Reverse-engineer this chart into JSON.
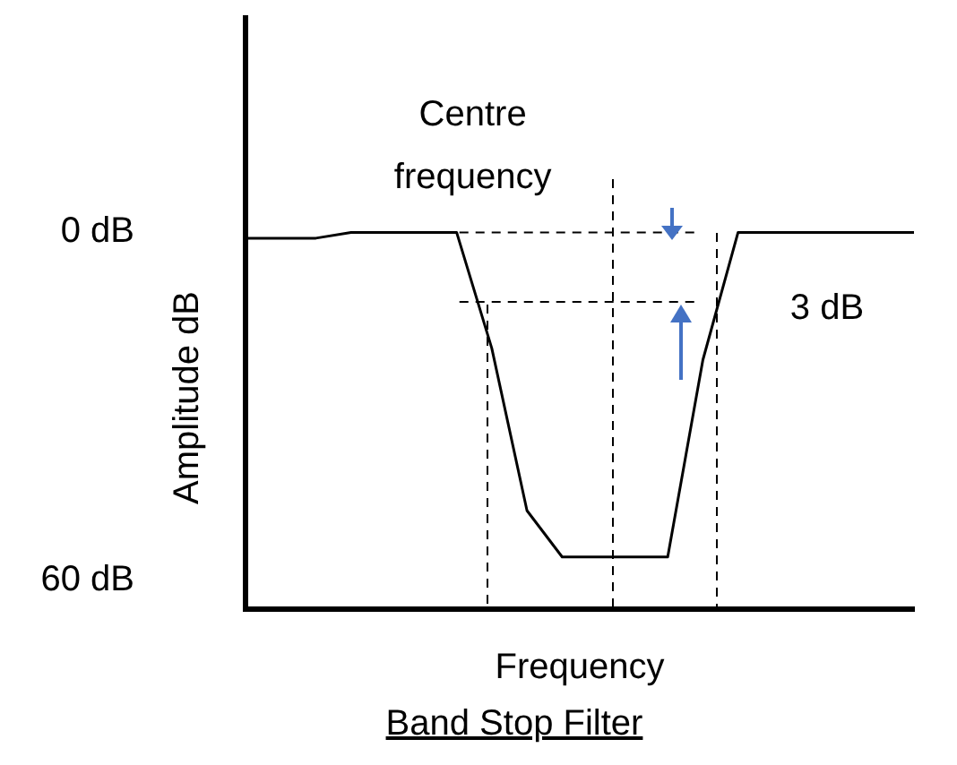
{
  "chart_data": {
    "type": "line",
    "title": "Band Stop Filter",
    "xlabel": "Frequency",
    "ylabel": "Amplitude dB",
    "categories": [
      null,
      null,
      null,
      null,
      null,
      null,
      null,
      null,
      null,
      null,
      null,
      null,
      null,
      null,
      null,
      null,
      null,
      null,
      null,
      null
    ],
    "series": [
      {
        "color": "#000000",
        "values": [
          1,
          1,
          1,
          0,
          0,
          0,
          0,
          20,
          48,
          56,
          56,
          56,
          56,
          22,
          0,
          0,
          0,
          0,
          0,
          0
        ]
      }
    ],
    "ylim": [
      65,
      -37
    ],
    "yticks": [
      {
        "value": 0,
        "label": "0 dB"
      },
      {
        "value": 60,
        "label": "60 dB"
      }
    ],
    "tick_labels": "y",
    "grid": false,
    "legend": false,
    "marker": "none",
    "line_style": "solid",
    "ref_lines": [
      {
        "axis": "y",
        "value": 0,
        "label": null,
        "line_style": "dashed"
      },
      {
        "axis": "y",
        "value": 12,
        "label": null,
        "line_style": "dashed"
      }
    ],
    "annotations": [
      "Centre frequency",
      "3 dB"
    ]
  }
}
